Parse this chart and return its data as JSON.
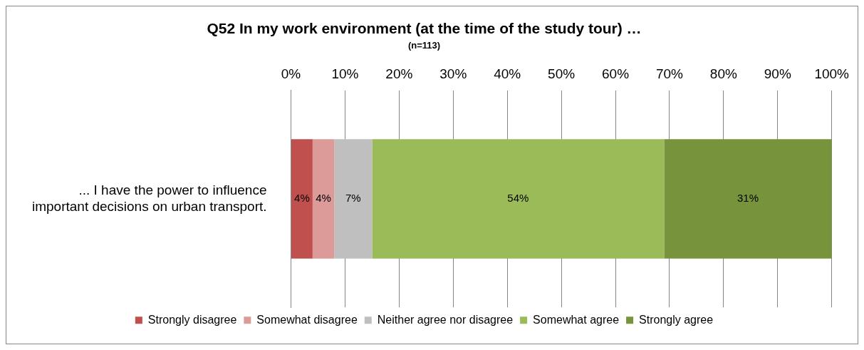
{
  "chart_data": {
    "type": "bar",
    "orientation": "horizontal",
    "stacked": true,
    "title": "Q52 In my work environment (at the time of the study tour) …",
    "subtitle": "(n=113)",
    "categories": [
      "... I have the power to influence important decisions on urban transport."
    ],
    "series": [
      {
        "name": "Strongly disagree",
        "color": "#c0504d",
        "values": [
          4
        ],
        "value_labels": [
          "4%"
        ]
      },
      {
        "name": "Somewhat disagree",
        "color": "#dc9a99",
        "values": [
          4
        ],
        "value_labels": [
          "4%"
        ]
      },
      {
        "name": "Neither agree nor disagree",
        "color": "#bfbfbf",
        "values": [
          7
        ],
        "value_labels": [
          "7%"
        ]
      },
      {
        "name": "Somewhat agree",
        "color": "#9bbb59",
        "values": [
          54
        ],
        "value_labels": [
          "54%"
        ]
      },
      {
        "name": "Strongly agree",
        "color": "#77933c",
        "values": [
          31
        ],
        "value_labels": [
          "31%"
        ]
      }
    ],
    "xlim": [
      0,
      100
    ],
    "xticks": [
      {
        "value": 0,
        "label": "0%"
      },
      {
        "value": 10,
        "label": "10%"
      },
      {
        "value": 20,
        "label": "20%"
      },
      {
        "value": 30,
        "label": "30%"
      },
      {
        "value": 40,
        "label": "40%"
      },
      {
        "value": 50,
        "label": "50%"
      },
      {
        "value": 60,
        "label": "60%"
      },
      {
        "value": 70,
        "label": "70%"
      },
      {
        "value": 80,
        "label": "80%"
      },
      {
        "value": 90,
        "label": "90%"
      },
      {
        "value": 100,
        "label": "100%"
      }
    ],
    "grid": "x",
    "legend": "bottom"
  }
}
